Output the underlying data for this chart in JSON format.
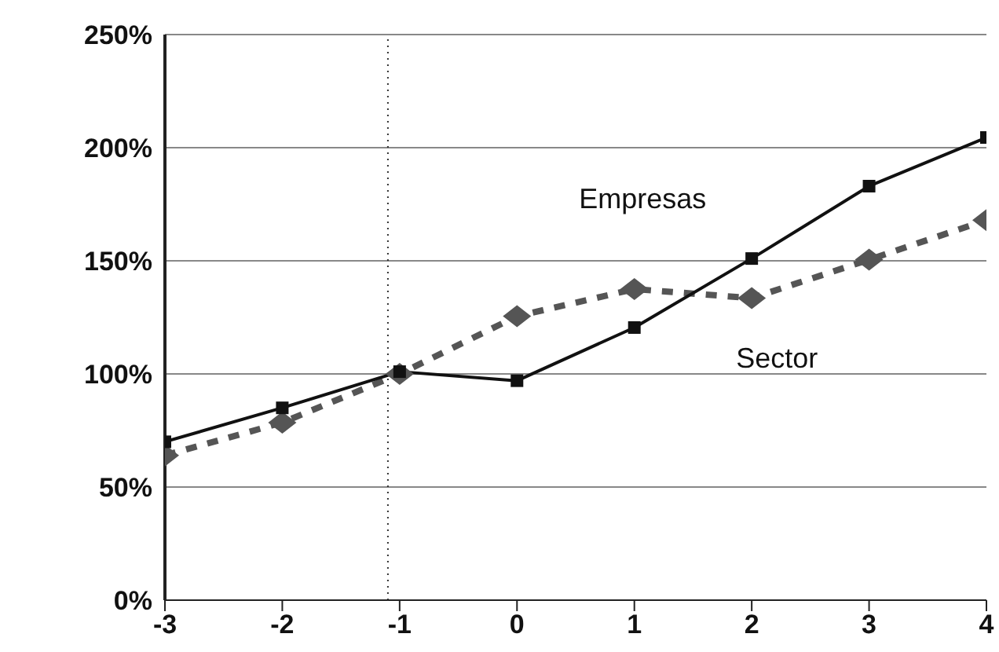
{
  "chart_data": {
    "type": "line",
    "x": [
      -3,
      -2,
      -1,
      0,
      1,
      2,
      3,
      4
    ],
    "series": [
      {
        "name": "Empresas",
        "color": "#111111",
        "values": [
          70,
          85,
          101,
          97,
          120.5,
          151,
          183,
          204.5
        ],
        "marker": "square",
        "line_style": "solid"
      },
      {
        "name": "Sector",
        "color": "#555555",
        "values": [
          64,
          78.5,
          100,
          125.5,
          137.5,
          133.5,
          150.5,
          168
        ],
        "marker": "diamond",
        "line_style": "dashed"
      }
    ],
    "xlim": [
      -3,
      4
    ],
    "xticks": [
      -3,
      -2,
      -1,
      0,
      1,
      2,
      3,
      4
    ],
    "ylim": [
      0,
      250
    ],
    "yticks": [
      {
        "value": 0,
        "label": "0%"
      },
      {
        "value": 50,
        "label": "50%"
      },
      {
        "value": 100,
        "label": "100%"
      },
      {
        "value": 150,
        "label": "150%"
      },
      {
        "value": 200,
        "label": "200%"
      },
      {
        "value": 250,
        "label": "250%"
      }
    ],
    "grid": "y",
    "legend": false,
    "ref_lines": [
      {
        "axis": "x",
        "value": -1.1,
        "color": "#333333",
        "line_style": "dotted"
      }
    ]
  }
}
